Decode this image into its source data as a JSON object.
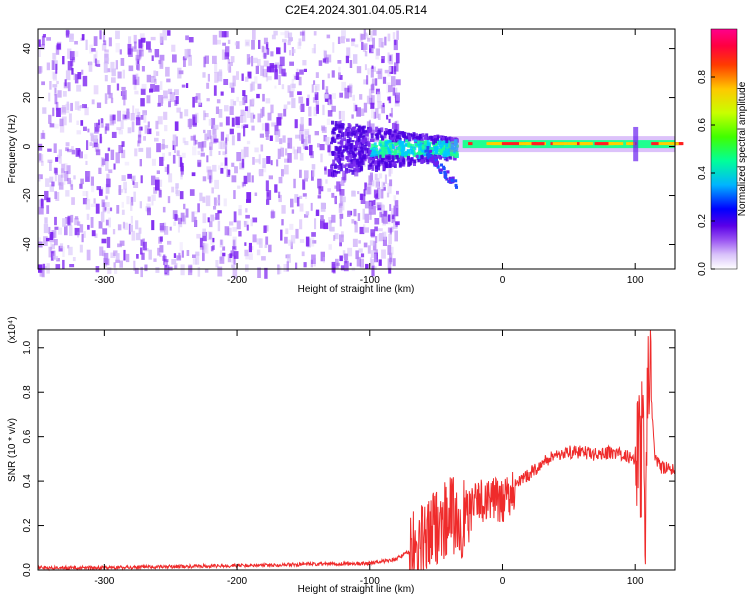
{
  "title": "C2E4.2024.301.04.05.R14",
  "chart_data": [
    {
      "type": "heatmap",
      "xlabel": "Height of straight line (km)",
      "ylabel": "Frequency (Hz)",
      "xlim": [
        -350,
        130
      ],
      "ylim": [
        -50,
        48
      ],
      "x_ticks": [
        -300,
        -200,
        -100,
        0,
        100
      ],
      "y_ticks": [
        -40,
        -20,
        0,
        20,
        40
      ],
      "colorbar": {
        "label": "Normalized spectral amplitude",
        "range": [
          0,
          1
        ],
        "ticks": [
          "0.0",
          "0.2",
          "0.4",
          "0.6",
          "0.8"
        ],
        "colors": [
          "#ffffff",
          "#c8a8f5",
          "#8a3df0",
          "#3d00d8",
          "#0000ff",
          "#00c8ff",
          "#00ff80",
          "#80ff00",
          "#ffff00",
          "#ff8000",
          "#ff0000",
          "#ff00aa"
        ]
      },
      "features": {
        "noise_region_x": [
          -350,
          -80
        ],
        "carrier_line": {
          "x_start": -30,
          "x_end": 130,
          "freq_hz": 1
        },
        "transition_zone_x": [
          -130,
          -35
        ]
      },
      "grid": false
    },
    {
      "type": "line",
      "xlabel": "Height of straight line (km)",
      "ylabel": "SNR (10 * v/v)",
      "scale_label": "(x10⁴)",
      "xlim": [
        -350,
        130
      ],
      "ylim": [
        0,
        1.08
      ],
      "x_ticks": [
        -300,
        -200,
        -100,
        0,
        100
      ],
      "y_ticks": [
        "0.0",
        "0.2",
        "0.4",
        "0.6",
        "0.8",
        "1.0"
      ],
      "series": [
        {
          "color": "#ff0000",
          "x": [
            -350,
            -300,
            -250,
            -200,
            -150,
            -100,
            -80,
            -60,
            -50,
            -40,
            -30,
            -20,
            -10,
            0,
            10,
            20,
            30,
            40,
            50,
            60,
            70,
            80,
            90,
            100,
            105,
            108,
            110,
            115,
            120,
            130
          ],
          "y": [
            0.01,
            0.01,
            0.015,
            0.02,
            0.025,
            0.03,
            0.05,
            0.12,
            0.2,
            0.25,
            0.22,
            0.3,
            0.33,
            0.3,
            0.38,
            0.43,
            0.48,
            0.52,
            0.53,
            0.53,
            0.52,
            0.53,
            0.52,
            0.5,
            0.55,
            0.3,
            0.95,
            0.5,
            0.46,
            0.45
          ]
        }
      ],
      "grid": false
    }
  ]
}
